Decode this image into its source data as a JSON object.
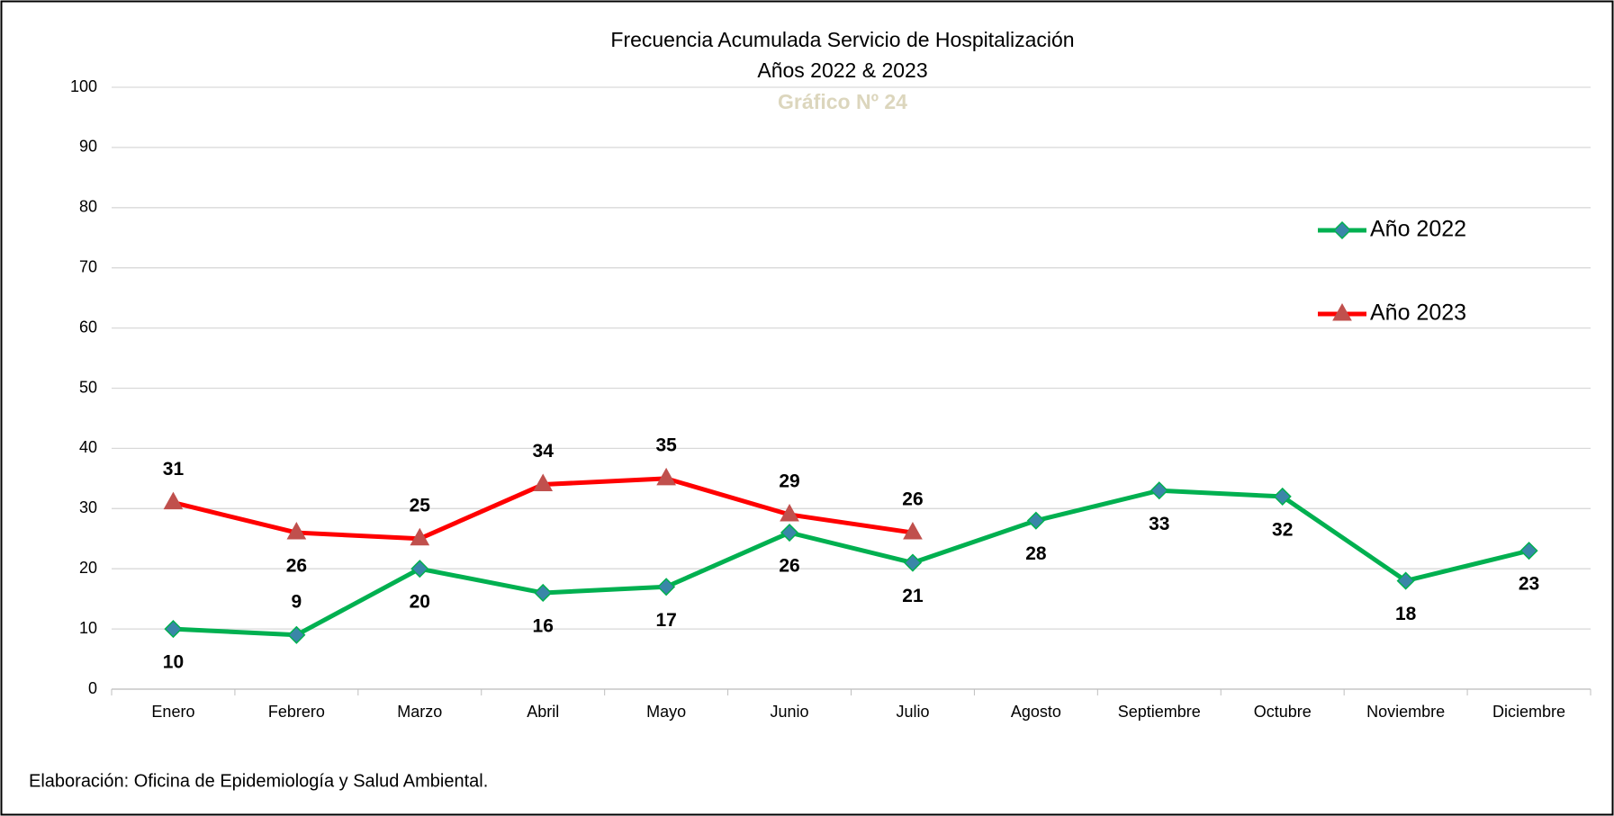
{
  "chart_data": {
    "type": "line",
    "title": "Frecuencia Acumulada Servicio de Hospitalización",
    "subtitle": "Años 2022 & 2023",
    "chart_number": "Gráfico Nº 24",
    "footer": "Elaboración: Oficina de Epidemiología y Salud Ambiental.",
    "categories": [
      "Enero",
      "Febrero",
      "Marzo",
      "Abril",
      "Mayo",
      "Junio",
      "Julio",
      "Agosto",
      "Septiembre",
      "Octubre",
      "Noviembre",
      "Diciembre"
    ],
    "series": [
      {
        "name": "Año 2022",
        "color": "#00b050",
        "marker": "diamond",
        "marker_color": "#3a86a8",
        "values": [
          10,
          9,
          20,
          16,
          17,
          26,
          21,
          28,
          33,
          32,
          18,
          23
        ]
      },
      {
        "name": "Año 2023",
        "color": "#ff0000",
        "marker": "triangle",
        "marker_color": "#c0504d",
        "values": [
          31,
          26,
          25,
          34,
          35,
          29,
          26,
          null,
          null,
          null,
          null,
          null
        ]
      }
    ],
    "ylim": [
      0,
      100
    ],
    "yticks": [
      0,
      10,
      20,
      30,
      40,
      50,
      60,
      70,
      80,
      90,
      100
    ],
    "grid": true,
    "legend": "right"
  }
}
